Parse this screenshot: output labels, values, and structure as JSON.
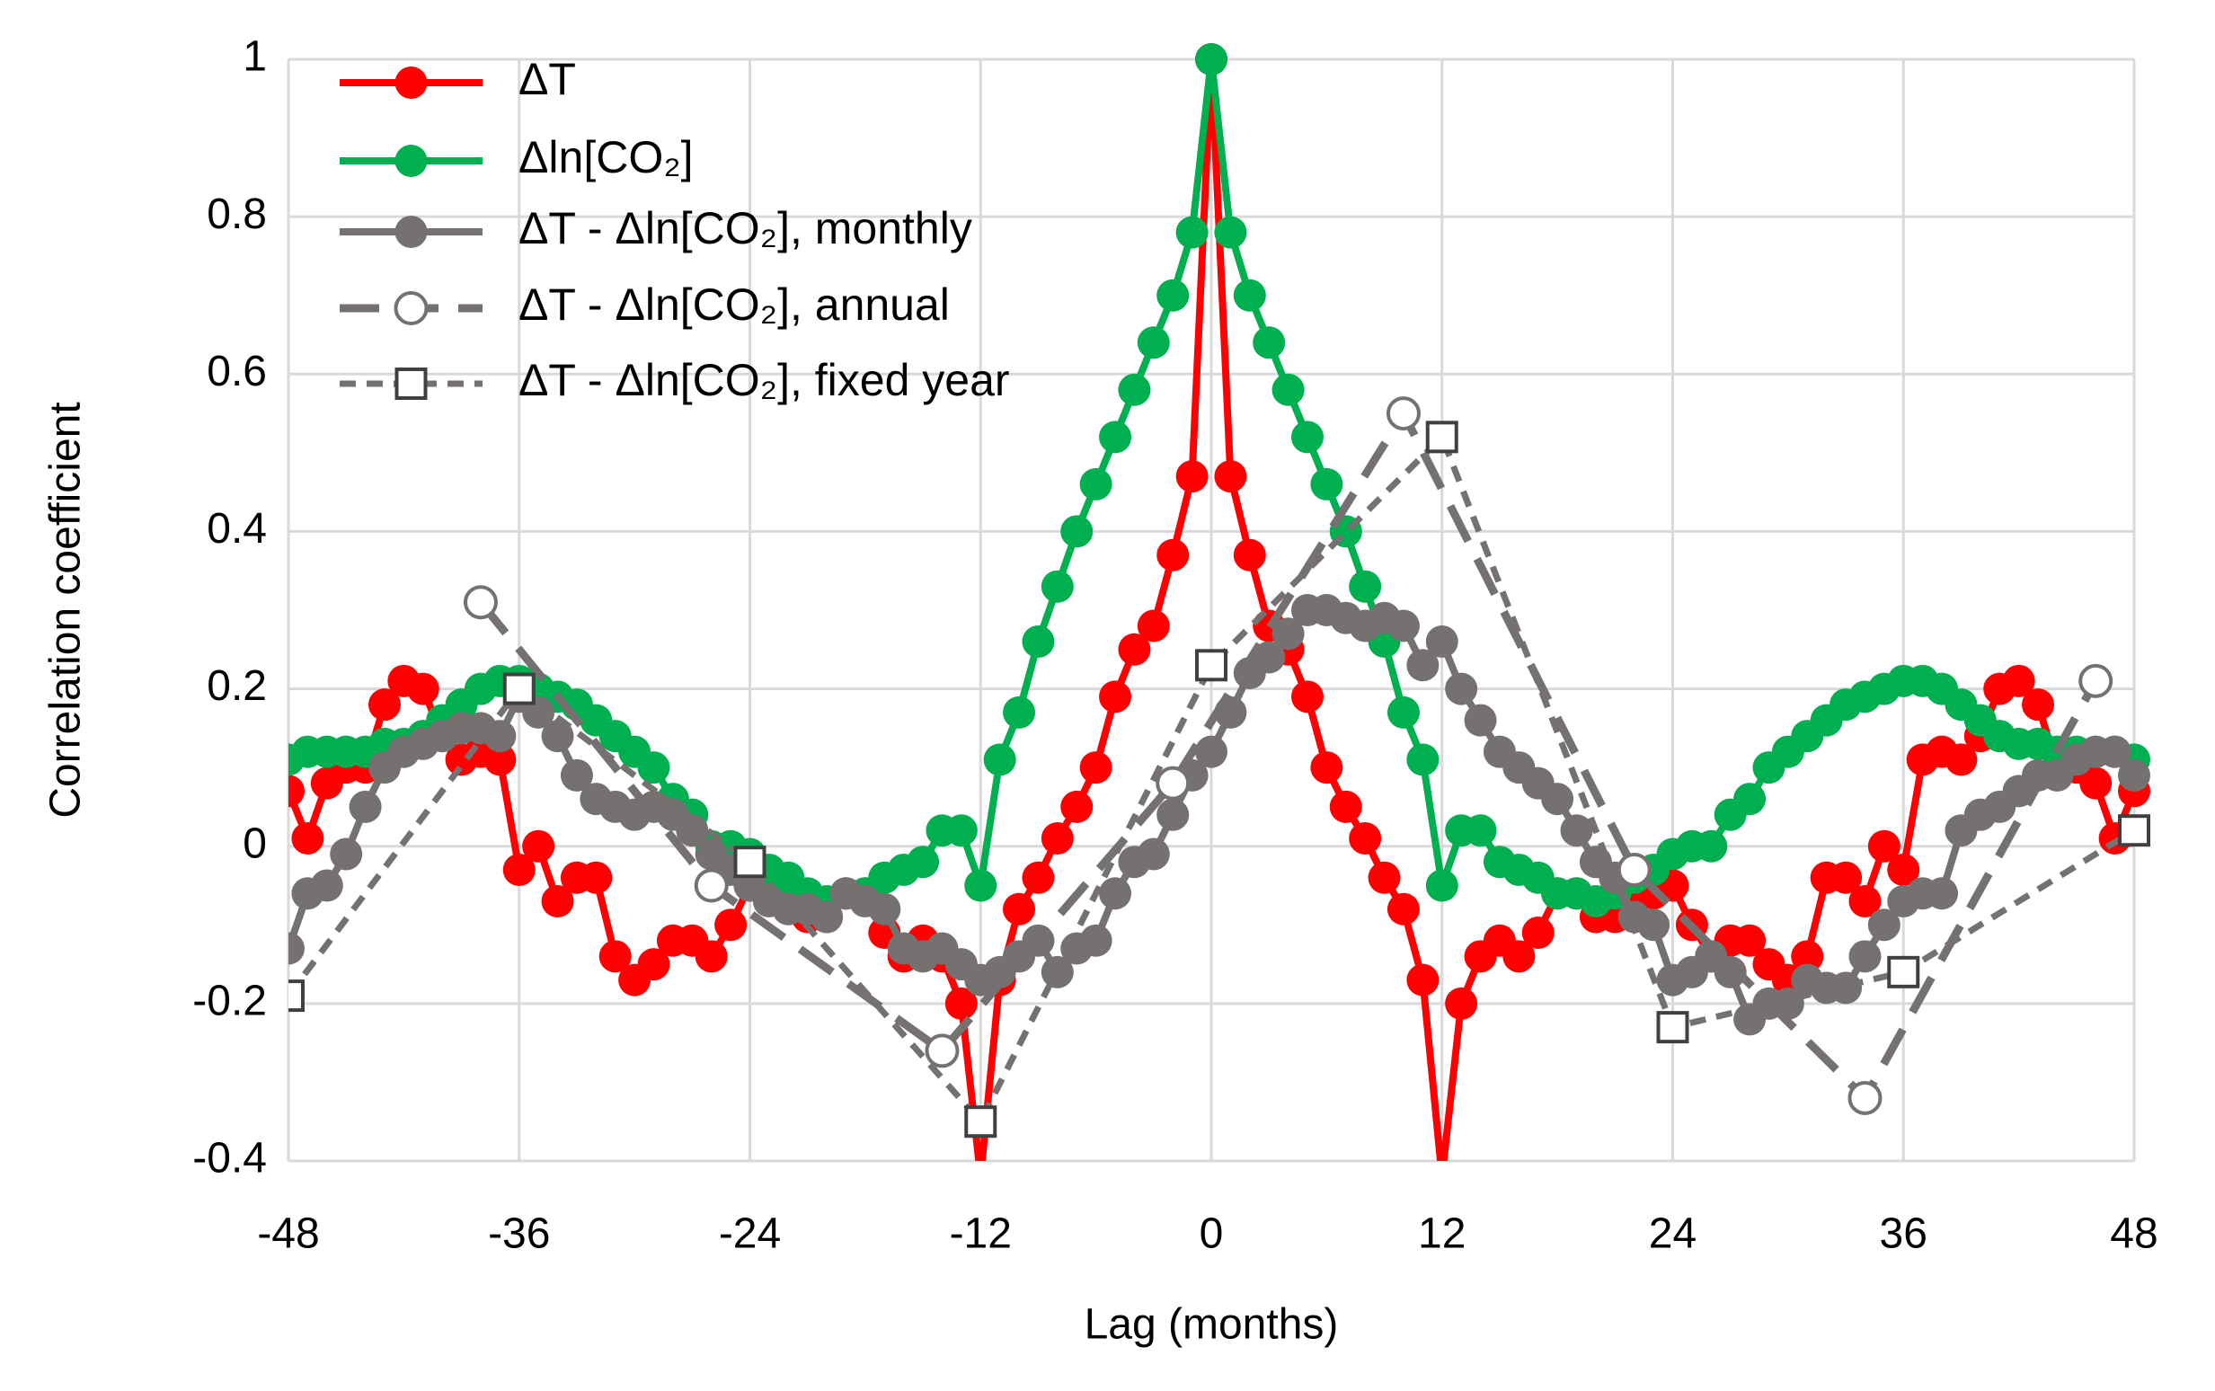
{
  "chart_data": {
    "type": "line",
    "xlabel": "Lag (months)",
    "ylabel": "Correlation coefficient",
    "x": [
      -48,
      -47,
      -46,
      -45,
      -44,
      -43,
      -42,
      -41,
      -40,
      -39,
      -38,
      -37,
      -36,
      -35,
      -34,
      -33,
      -32,
      -31,
      -30,
      -29,
      -28,
      -27,
      -26,
      -25,
      -24,
      -23,
      -22,
      -21,
      -20,
      -19,
      -18,
      -17,
      -16,
      -15,
      -14,
      -13,
      -12,
      -11,
      -10,
      -9,
      -8,
      -7,
      -6,
      -5,
      -4,
      -3,
      -2,
      -1,
      0,
      1,
      2,
      3,
      4,
      5,
      6,
      7,
      8,
      9,
      10,
      11,
      12,
      13,
      14,
      15,
      16,
      17,
      18,
      19,
      20,
      21,
      22,
      23,
      24,
      25,
      26,
      27,
      28,
      29,
      30,
      31,
      32,
      33,
      34,
      35,
      36,
      37,
      38,
      39,
      40,
      41,
      42,
      43,
      44,
      45,
      46,
      47,
      48
    ],
    "xlim": [
      -48,
      48
    ],
    "xticks": [
      -48,
      -36,
      -24,
      -12,
      0,
      12,
      24,
      36,
      48
    ],
    "ylim": [
      -0.4,
      1
    ],
    "yticks": [
      -0.4,
      -0.2,
      0,
      0.2,
      0.4,
      0.6,
      0.8,
      1
    ],
    "grid": true,
    "legend": "upper left",
    "series": [
      {
        "name": "ΔT",
        "color": "#ff0000",
        "marker": "circle",
        "dash": "solid",
        "values": [
          0.07,
          0.01,
          0.08,
          0.1,
          0.1,
          0.18,
          0.21,
          0.2,
          0.14,
          0.11,
          0.12,
          0.11,
          -0.03,
          0.0,
          -0.07,
          -0.04,
          -0.04,
          -0.14,
          -0.17,
          -0.15,
          -0.12,
          -0.12,
          -0.14,
          -0.1,
          -0.05,
          -0.06,
          -0.07,
          -0.09,
          -0.09,
          -0.06,
          -0.06,
          -0.11,
          -0.14,
          -0.12,
          -0.14,
          -0.2,
          -0.42,
          -0.17,
          -0.08,
          -0.04,
          0.01,
          0.05,
          0.1,
          0.19,
          0.25,
          0.28,
          0.37,
          0.47,
          1,
          0.47,
          0.37,
          0.28,
          0.25,
          0.19,
          0.1,
          0.05,
          0.01,
          -0.04,
          -0.08,
          -0.17,
          -0.42,
          -0.2,
          -0.14,
          -0.12,
          -0.14,
          -0.11,
          -0.06,
          -0.06,
          -0.09,
          -0.09,
          -0.07,
          -0.06,
          -0.05,
          -0.1,
          -0.14,
          -0.12,
          -0.12,
          -0.15,
          -0.17,
          -0.14,
          -0.04,
          -0.04,
          -0.07,
          0.0,
          -0.03,
          0.11,
          0.12,
          0.11,
          0.14,
          0.2,
          0.21,
          0.18,
          0.1,
          0.1,
          0.08,
          0.01,
          0.07
        ]
      },
      {
        "name": "Δln[CO₂]",
        "color": "#00b050",
        "marker": "circle",
        "dash": "solid",
        "values": [
          0.11,
          0.12,
          0.12,
          0.12,
          0.12,
          0.13,
          0.13,
          0.14,
          0.16,
          0.18,
          0.2,
          0.21,
          0.21,
          0.2,
          0.19,
          0.18,
          0.16,
          0.14,
          0.12,
          0.1,
          0.06,
          0.04,
          0.0,
          0.0,
          -0.01,
          -0.03,
          -0.04,
          -0.06,
          -0.07,
          -0.06,
          -0.06,
          -0.04,
          -0.03,
          -0.02,
          0.02,
          0.02,
          -0.05,
          0.11,
          0.17,
          0.26,
          0.33,
          0.4,
          0.46,
          0.52,
          0.58,
          0.64,
          0.7,
          0.78,
          1,
          0.78,
          0.7,
          0.64,
          0.58,
          0.52,
          0.46,
          0.4,
          0.33,
          0.26,
          0.17,
          0.11,
          -0.05,
          0.02,
          0.02,
          -0.02,
          -0.03,
          -0.04,
          -0.06,
          -0.06,
          -0.07,
          -0.06,
          -0.04,
          -0.03,
          -0.01,
          0.0,
          0.0,
          0.04,
          0.06,
          0.1,
          0.12,
          0.14,
          0.16,
          0.18,
          0.19,
          0.2,
          0.21,
          0.21,
          0.2,
          0.18,
          0.16,
          0.14,
          0.13,
          0.13,
          0.12,
          0.12,
          0.12,
          0.12,
          0.11
        ]
      },
      {
        "name": "ΔT - Δln[CO₂], monthly",
        "color": "#767171",
        "marker": "circle",
        "dash": "solid",
        "values": [
          -0.13,
          -0.06,
          -0.05,
          -0.01,
          0.05,
          0.1,
          0.12,
          0.13,
          0.14,
          0.15,
          0.15,
          0.14,
          0.19,
          0.17,
          0.14,
          0.09,
          0.06,
          0.05,
          0.04,
          0.05,
          0.04,
          0.02,
          -0.01,
          -0.03,
          -0.05,
          -0.07,
          -0.08,
          -0.08,
          -0.09,
          -0.06,
          -0.07,
          -0.08,
          -0.13,
          -0.14,
          -0.13,
          -0.15,
          -0.17,
          -0.16,
          -0.14,
          -0.12,
          -0.16,
          -0.13,
          -0.12,
          -0.06,
          -0.02,
          -0.01,
          0.04,
          0.09,
          0.12,
          0.17,
          0.22,
          0.24,
          0.27,
          0.3,
          0.3,
          0.29,
          0.28,
          0.29,
          0.28,
          0.23,
          0.26,
          0.2,
          0.16,
          0.12,
          0.1,
          0.08,
          0.06,
          0.02,
          -0.02,
          -0.04,
          -0.09,
          -0.1,
          -0.17,
          -0.16,
          -0.14,
          -0.16,
          -0.22,
          -0.2,
          -0.2,
          -0.17,
          -0.18,
          -0.18,
          -0.14,
          -0.1,
          -0.07,
          -0.06,
          -0.06,
          0.02,
          0.04,
          0.05,
          0.07,
          0.09,
          0.09,
          0.11,
          0.12,
          0.12,
          0.09
        ]
      },
      {
        "name": "ΔT - Δln[CO₂], annual",
        "color": "#767171",
        "marker": "open-circle",
        "dash": "long",
        "x": [
          -38,
          -26,
          -14,
          -2,
          10,
          22,
          34,
          46
        ],
        "values": [
          0.31,
          -0.05,
          -0.26,
          0.08,
          0.55,
          -0.03,
          -0.32,
          0.21
        ]
      },
      {
        "name": "ΔT - Δln[CO₂], fixed year",
        "color": "#767171",
        "marker": "square",
        "dash": "short",
        "x": [
          -48,
          -36,
          -24,
          -12,
          0,
          12,
          24,
          36,
          48
        ],
        "values": [
          -0.19,
          0.2,
          -0.02,
          -0.35,
          0.23,
          0.52,
          -0.23,
          -0.16,
          0.02
        ]
      }
    ]
  }
}
